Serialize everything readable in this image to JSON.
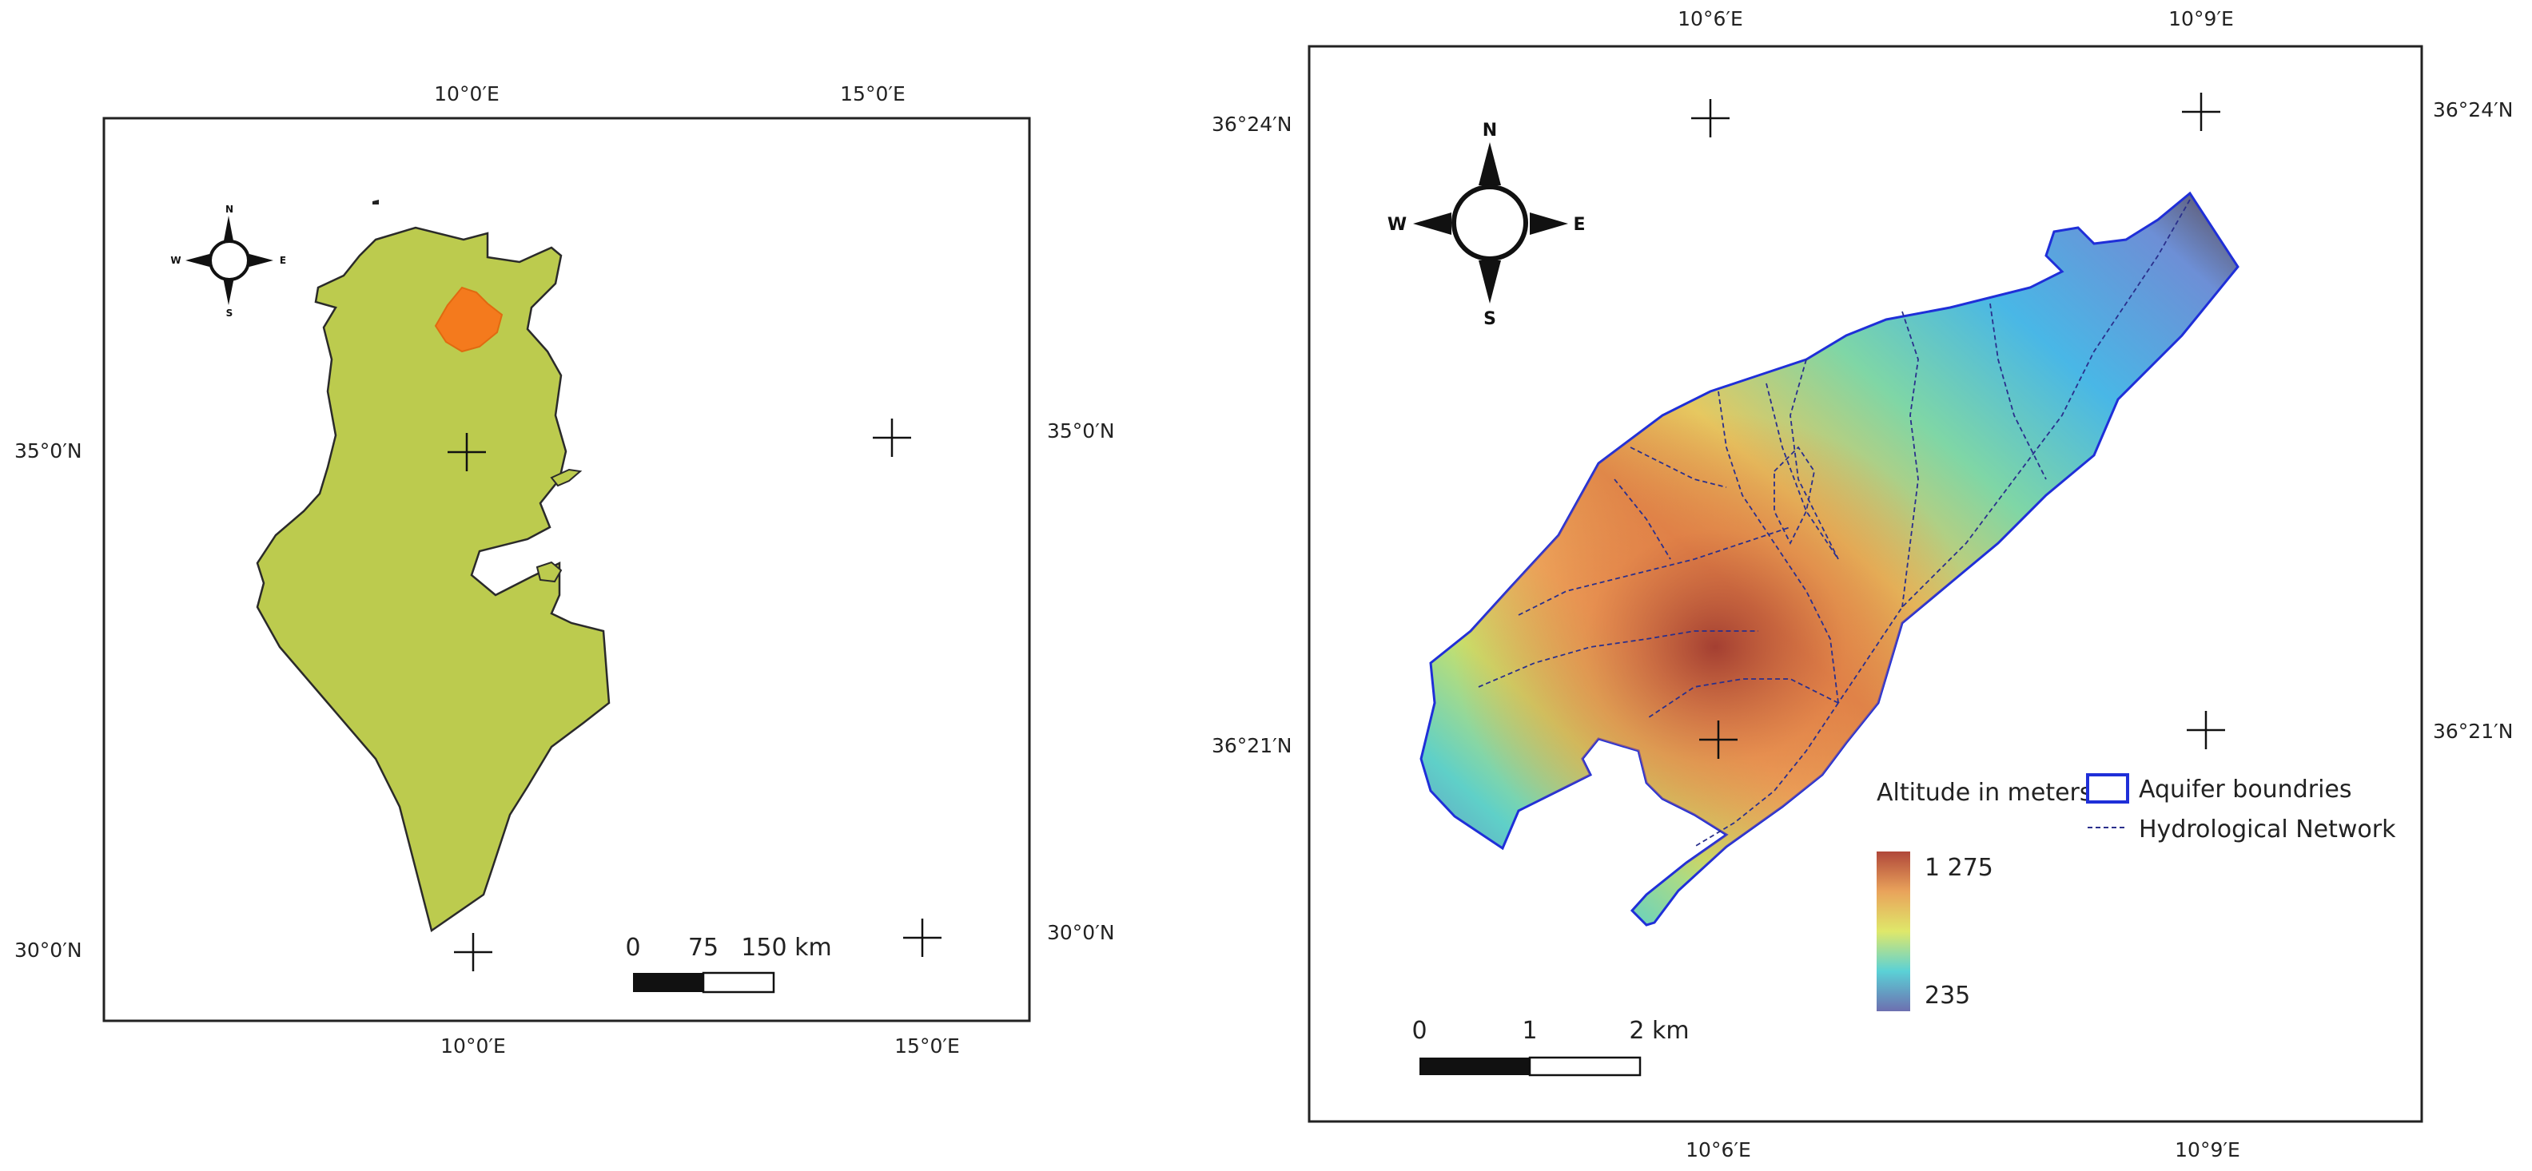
{
  "left_map": {
    "top_lon_labels": [
      "10°0′E",
      "15°0′E"
    ],
    "bottom_lon_labels": [
      "10°0′E",
      "15°0′E"
    ],
    "left_lat_labels": [
      "35°0′N",
      "30°0′N"
    ],
    "right_lat_labels": [
      "35°0′N",
      "30°0′N"
    ],
    "compass": {
      "n": "N",
      "s": "S",
      "e": "E",
      "w": "W"
    },
    "scale": {
      "labels": [
        "0",
        "75",
        "150 km"
      ]
    },
    "colors": {
      "country": "#bccb4e",
      "study_area": "#f47a1d"
    }
  },
  "right_map": {
    "top_lon_labels": [
      "10°6′E",
      "10°9′E"
    ],
    "bottom_lon_labels": [
      "10°6′E",
      "10°9′E"
    ],
    "left_lat_labels": [
      "36°24′N",
      "36°21′N"
    ],
    "right_lat_labels": [
      "36°24′N",
      "36°21′N"
    ],
    "compass": {
      "n": "N",
      "s": "S",
      "e": "E",
      "w": "W"
    },
    "legend": {
      "title": "Altitude in meters",
      "max_label": "1 275",
      "min_label": "235",
      "aquifer_label": "Aquifer boundries",
      "network_label": "Hydrological Network"
    },
    "scale": {
      "labels": [
        "0",
        "1",
        "2 km"
      ]
    },
    "colors": {
      "boundary": "#1f2fd8",
      "network": "#2a2f8c",
      "low": "#6d6fb0",
      "high": "#b0473a"
    }
  }
}
